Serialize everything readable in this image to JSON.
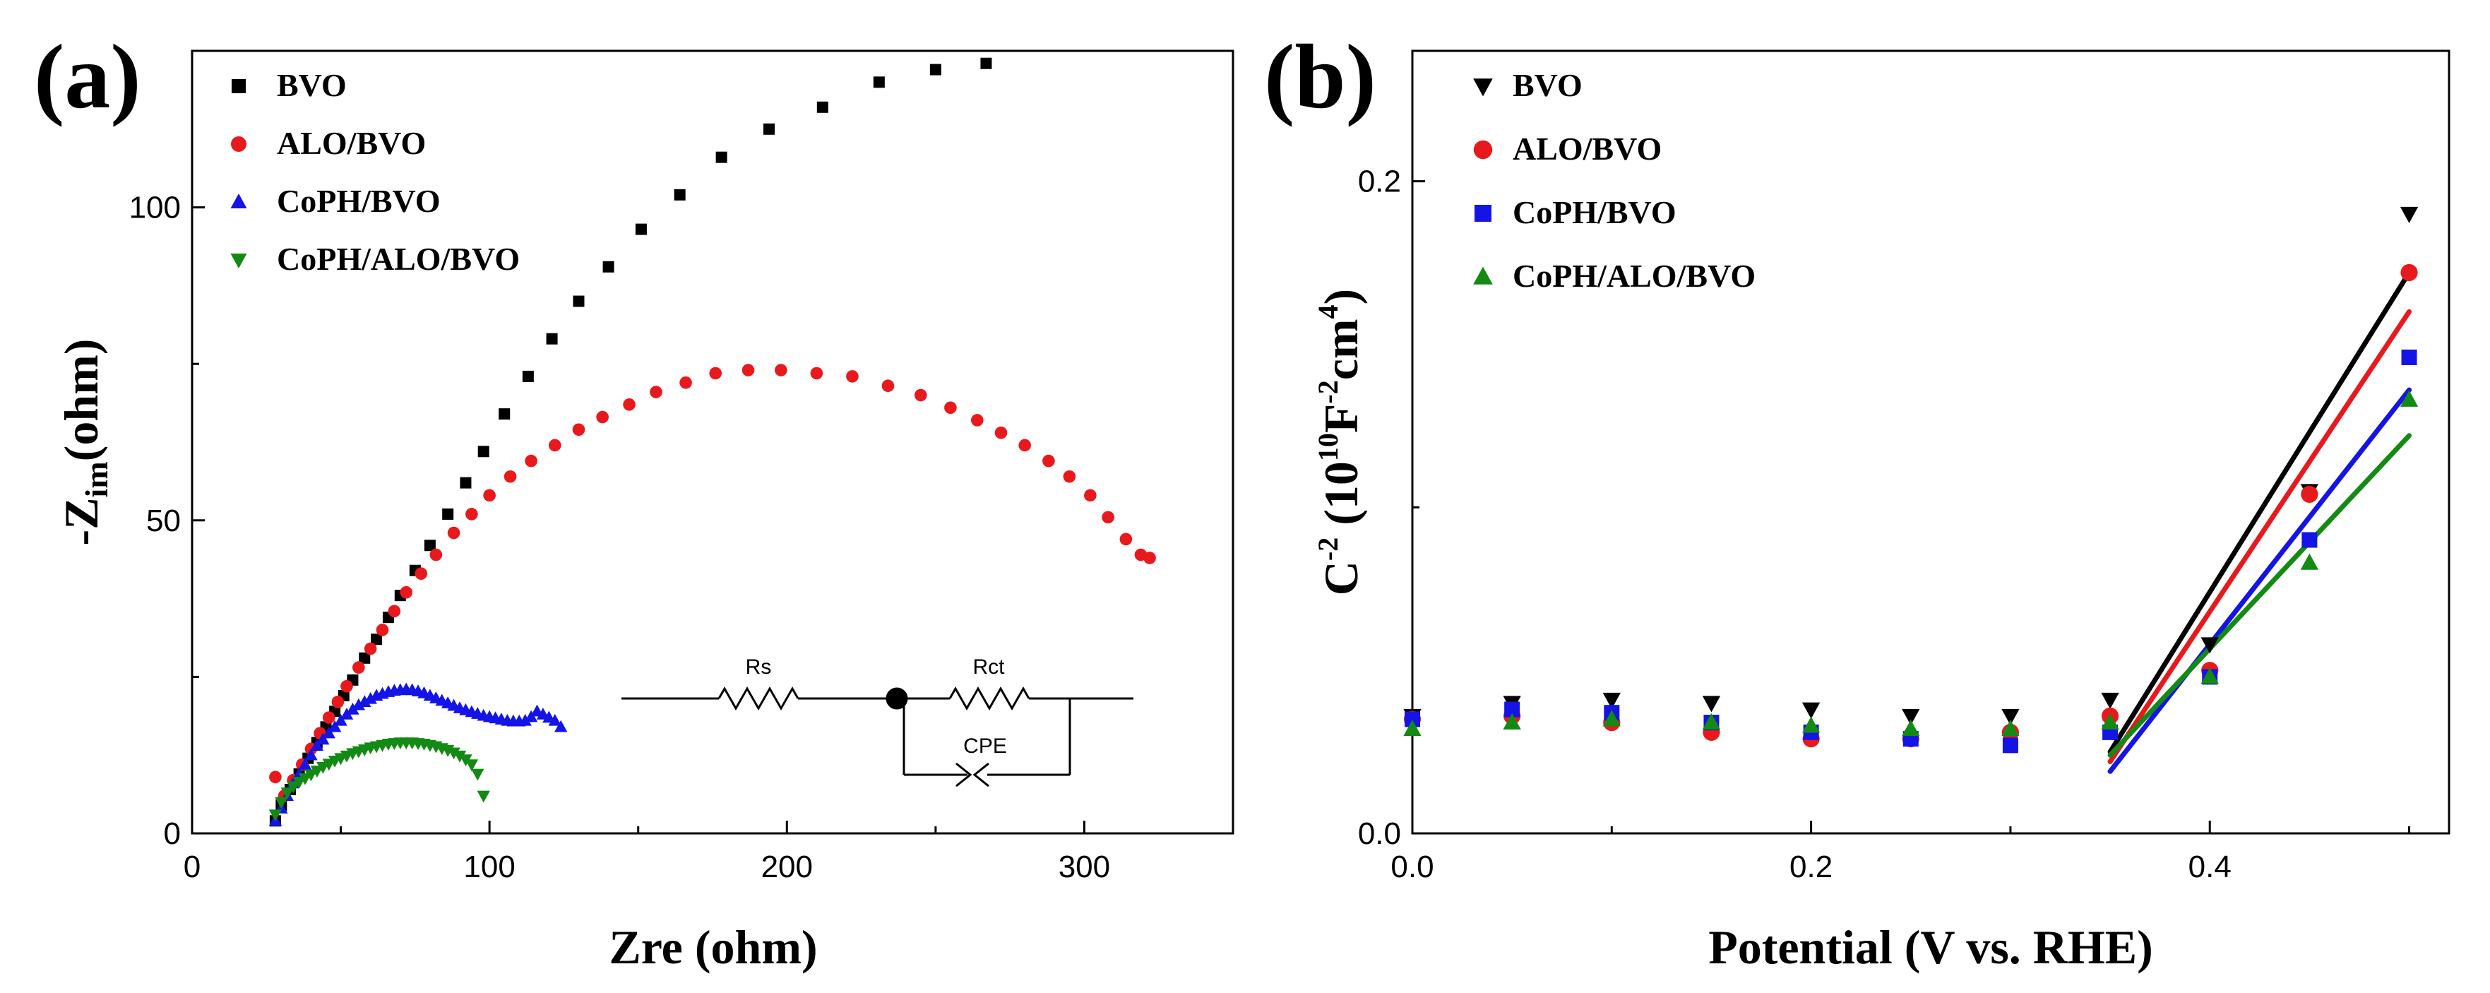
{
  "chart_data": [
    {
      "panel_label": "(a)",
      "type": "scatter",
      "xlabel": "Zre (ohm)",
      "ylabel_main": "-Z",
      "ylabel_sub": "im",
      "ylabel_tail": "(ohm)",
      "xlim": [
        0,
        350
      ],
      "ylim": [
        0,
        125
      ],
      "xticks": [
        0,
        100,
        200,
        300
      ],
      "xtick_labels": [
        "0",
        "100",
        "200",
        "300"
      ],
      "yticks": [
        0,
        50,
        100
      ],
      "ytick_labels": [
        "0",
        "50",
        "100"
      ],
      "legend_position": "top-left",
      "series": [
        {
          "name": "BVO",
          "marker": "square",
          "color": "#000000",
          "x": [
            28,
            30,
            33,
            36,
            39,
            42,
            45,
            48,
            51,
            54,
            58,
            62,
            66,
            70,
            75,
            80,
            86,
            92,
            98,
            105,
            113,
            121,
            130,
            140,
            151,
            164,
            178,
            194,
            212,
            231,
            250,
            267
          ],
          "y": [
            2,
            4.5,
            7,
            9.5,
            12,
            14.5,
            17,
            19.5,
            22,
            24.5,
            28,
            31,
            34.5,
            38,
            42,
            46,
            51,
            56,
            61,
            67,
            73,
            79,
            85,
            90.5,
            96.5,
            102,
            108,
            112.5,
            116,
            120,
            122,
            123
          ]
        },
        {
          "name": "ALO/BVO",
          "marker": "circle",
          "color": "#e8191c",
          "x": [
            28,
            31,
            34,
            37,
            40,
            43,
            46,
            49,
            52,
            56,
            60,
            64,
            68,
            72,
            77,
            82,
            88,
            94,
            100,
            107,
            114,
            122,
            130,
            138,
            147,
            156,
            166,
            176,
            187,
            198,
            210,
            222,
            234,
            245,
            255,
            264,
            272,
            280,
            288,
            295,
            302,
            308,
            314,
            319,
            322
          ],
          "y": [
            9,
            6,
            8.5,
            11,
            13.5,
            16,
            18.5,
            21,
            23.5,
            26.5,
            29.5,
            32.5,
            35.5,
            38.5,
            41.5,
            44.5,
            48,
            51,
            54,
            57,
            59.5,
            62,
            64.5,
            66.5,
            68.5,
            70.5,
            72,
            73.5,
            74,
            74,
            73.5,
            73,
            71.5,
            70,
            68,
            66,
            64,
            62,
            59.5,
            57,
            54,
            50.5,
            47,
            44.5,
            44
          ]
        },
        {
          "name": "CoPH/BVO",
          "marker": "triangle-up",
          "color": "#1414e6",
          "x": [
            28,
            30,
            32,
            34,
            36,
            38,
            40,
            42,
            44,
            46,
            48,
            50,
            52,
            54,
            56,
            58,
            60,
            62,
            64,
            66,
            68,
            70,
            72,
            74,
            76,
            78,
            80,
            82,
            84,
            86,
            88,
            90,
            92,
            94,
            96,
            98,
            100,
            102,
            104,
            106,
            108,
            110,
            112,
            114,
            116,
            118,
            120,
            122,
            124
          ],
          "y": [
            2,
            4,
            6,
            8,
            9.5,
            11,
            12.5,
            14,
            15,
            16,
            17,
            18,
            19,
            19.8,
            20.5,
            21,
            21.5,
            22,
            22.3,
            22.6,
            22.8,
            22.9,
            23,
            22.9,
            22.7,
            22.4,
            22,
            21.6,
            21.2,
            20.8,
            20.4,
            20,
            19.7,
            19.4,
            19.1,
            18.8,
            18.6,
            18.4,
            18.2,
            18,
            17.9,
            17.9,
            18,
            18.6,
            19.5,
            19,
            18.5,
            18,
            17
          ]
        },
        {
          "name": "CoPH/ALO/BVO",
          "marker": "triangle-down",
          "color": "#138a13",
          "x": [
            28,
            30,
            32,
            34,
            36,
            38,
            40,
            42,
            44,
            46,
            48,
            50,
            52,
            54,
            56,
            58,
            60,
            62,
            64,
            66,
            68,
            70,
            72,
            74,
            76,
            78,
            80,
            82,
            84,
            86,
            88,
            90,
            92,
            94,
            96,
            98
          ],
          "y": [
            3,
            5,
            6.5,
            7.5,
            8.2,
            8.8,
            9.4,
            10,
            10.6,
            11.1,
            11.6,
            12,
            12.4,
            12.8,
            13.1,
            13.4,
            13.7,
            13.9,
            14.1,
            14.3,
            14.4,
            14.5,
            14.5,
            14.5,
            14.4,
            14.3,
            14.1,
            13.9,
            13.6,
            13.3,
            12.9,
            12.4,
            11.8,
            11,
            9.5,
            6
          ]
        }
      ],
      "inset_circuit": {
        "labels": [
          "Rs",
          "Rct",
          "CPE"
        ]
      }
    },
    {
      "panel_label": "(b)",
      "type": "scatter",
      "xlabel": "Potential (V vs. RHE)",
      "ylabel_C": "C",
      "ylabel_sup1": "-2",
      "ylabel_open": " (10",
      "ylabel_sup2": "10",
      "ylabel_F": "F",
      "ylabel_sup3": "-2",
      "ylabel_cm": "cm",
      "ylabel_sup4": "4",
      "ylabel_close": ")",
      "xlim": [
        0.0,
        0.52
      ],
      "ylim": [
        0.0,
        0.24
      ],
      "xticks": [
        0.0,
        0.2,
        0.4
      ],
      "xtick_labels": [
        "0.0",
        "0.2",
        "0.4"
      ],
      "yticks": [
        0.0,
        0.2
      ],
      "ytick_labels": [
        "0.0",
        "0.2"
      ],
      "legend_position": "top-left",
      "series": [
        {
          "name": "BVO",
          "marker": "triangle-down",
          "color": "#000000",
          "x": [
            0.0,
            0.05,
            0.1,
            0.15,
            0.2,
            0.25,
            0.3,
            0.35,
            0.4,
            0.45,
            0.5
          ],
          "y": [
            0.036,
            0.04,
            0.041,
            0.04,
            0.038,
            0.036,
            0.036,
            0.041,
            0.058,
            0.105,
            0.19
          ],
          "fit": {
            "x": [
              0.35,
              0.5
            ],
            "y": [
              0.025,
              0.172
            ]
          }
        },
        {
          "name": "ALO/BVO",
          "marker": "circle",
          "color": "#e8191c",
          "x": [
            0.0,
            0.05,
            0.1,
            0.15,
            0.2,
            0.25,
            0.3,
            0.35,
            0.4,
            0.45,
            0.5
          ],
          "y": [
            0.035,
            0.036,
            0.034,
            0.031,
            0.029,
            0.029,
            0.031,
            0.036,
            0.05,
            0.104,
            0.172
          ],
          "fit": {
            "x": [
              0.35,
              0.5
            ],
            "y": [
              0.022,
              0.16
            ]
          }
        },
        {
          "name": "CoPH/BVO",
          "marker": "square",
          "color": "#1414e6",
          "x": [
            0.0,
            0.05,
            0.1,
            0.15,
            0.2,
            0.25,
            0.3,
            0.35,
            0.4,
            0.45,
            0.5
          ],
          "y": [
            0.035,
            0.038,
            0.037,
            0.034,
            0.031,
            0.029,
            0.027,
            0.031,
            0.048,
            0.09,
            0.146
          ],
          "fit": {
            "x": [
              0.35,
              0.5
            ],
            "y": [
              0.019,
              0.136
            ]
          }
        },
        {
          "name": "CoPH/ALO/BVO",
          "marker": "triangle-up",
          "color": "#138a13",
          "x": [
            0.0,
            0.05,
            0.1,
            0.15,
            0.2,
            0.25,
            0.3,
            0.35,
            0.4,
            0.45,
            0.5
          ],
          "y": [
            0.032,
            0.034,
            0.035,
            0.034,
            0.033,
            0.032,
            0.032,
            0.034,
            0.048,
            0.083,
            0.133
          ],
          "fit": {
            "x": [
              0.35,
              0.5
            ],
            "y": [
              0.024,
              0.122
            ]
          }
        }
      ]
    }
  ]
}
